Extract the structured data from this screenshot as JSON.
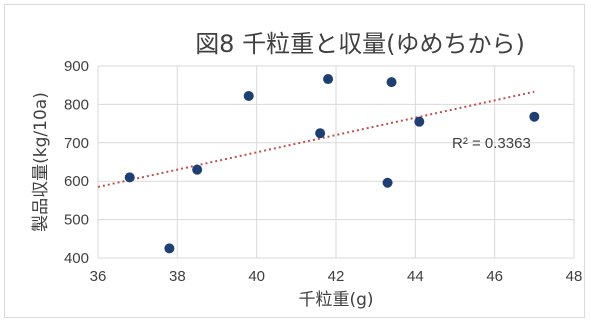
{
  "chart_data": {
    "type": "scatter",
    "title": "図8 千粒重と収量(ゆめちから)",
    "xlabel": "千粒重(g)",
    "ylabel": "製品収量(kg/10a)",
    "xlim": [
      36,
      48
    ],
    "ylim": [
      400,
      900
    ],
    "x_ticks": [
      36,
      38,
      40,
      42,
      44,
      46,
      48
    ],
    "y_ticks": [
      400,
      500,
      600,
      700,
      800,
      900
    ],
    "x_tick_labels": [
      "36",
      "38",
      "40",
      "42",
      "44",
      "46",
      "48"
    ],
    "y_tick_labels": [
      "400",
      "500",
      "600",
      "700",
      "800",
      "900"
    ],
    "grid": true,
    "points": [
      {
        "x": 36.8,
        "y": 610
      },
      {
        "x": 37.8,
        "y": 425
      },
      {
        "x": 38.5,
        "y": 630
      },
      {
        "x": 39.8,
        "y": 822
      },
      {
        "x": 41.6,
        "y": 725
      },
      {
        "x": 41.8,
        "y": 866
      },
      {
        "x": 43.3,
        "y": 596
      },
      {
        "x": 43.4,
        "y": 858
      },
      {
        "x": 44.1,
        "y": 755
      },
      {
        "x": 47.0,
        "y": 768
      }
    ],
    "trendline": {
      "type": "linear",
      "from": {
        "x": 36,
        "y": 585
      },
      "to": {
        "x": 47,
        "y": 833
      },
      "label": "R² = 0.3363"
    },
    "colors": {
      "marker": "#1f3f73",
      "trendline": "#c0504d",
      "grid": "#d9d9d9",
      "text": "#404040"
    }
  }
}
